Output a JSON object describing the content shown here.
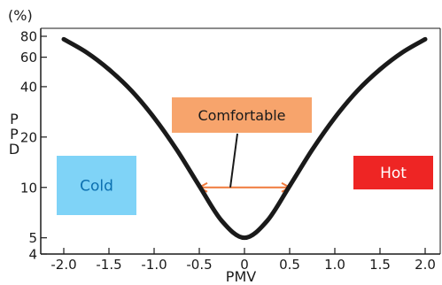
{
  "chart_data": {
    "type": "line",
    "title": "",
    "y_unit": "(%)",
    "xlabel": "PMV",
    "ylabel": "PPD",
    "x_scale": "linear",
    "y_scale": "log",
    "xlim": [
      -2.1,
      2.1
    ],
    "ylim": [
      4,
      90
    ],
    "x_ticks": [
      -2.0,
      -1.5,
      -1.0,
      -0.5,
      0,
      0.5,
      1.0,
      1.5,
      2.0
    ],
    "x_tick_labels": [
      "-2.0",
      "-1.5",
      "-1.0",
      "-0.5",
      "0",
      "0.5",
      "1.0",
      "1.5",
      "2.0"
    ],
    "y_ticks": [
      4,
      5,
      10,
      20,
      40,
      60,
      80
    ],
    "y_tick_labels": [
      "4",
      "5",
      "10",
      "20",
      "40",
      "60",
      "80"
    ],
    "grid": false,
    "series": [
      {
        "color": "#1a1a1a",
        "x": [
          -2.0,
          -1.75,
          -1.5,
          -1.25,
          -1.0,
          -0.75,
          -0.5,
          -0.25,
          0,
          0.25,
          0.5,
          0.75,
          1.0,
          1.25,
          1.5,
          1.75,
          2.0
        ],
        "y": [
          76.8,
          64.2,
          50.7,
          37.8,
          26.1,
          16.8,
          10.2,
          6.3,
          5.0,
          6.3,
          10.2,
          16.8,
          26.1,
          37.8,
          50.7,
          64.2,
          76.8
        ]
      }
    ],
    "annotations": [
      {
        "name": "cold",
        "text": "Cold",
        "bg": "#7fd3f7",
        "color": "#0b6fb0"
      },
      {
        "name": "comfortable",
        "text": "Comfortable",
        "bg": "#f7a46c",
        "color": "#1a1a1a"
      },
      {
        "name": "hot",
        "text": "Hot",
        "bg": "#ee2524",
        "color": "#ffffff"
      }
    ],
    "comfort_range": {
      "x": [
        -0.5,
        0.5
      ],
      "y": 10,
      "color": "#f07a3c"
    }
  }
}
